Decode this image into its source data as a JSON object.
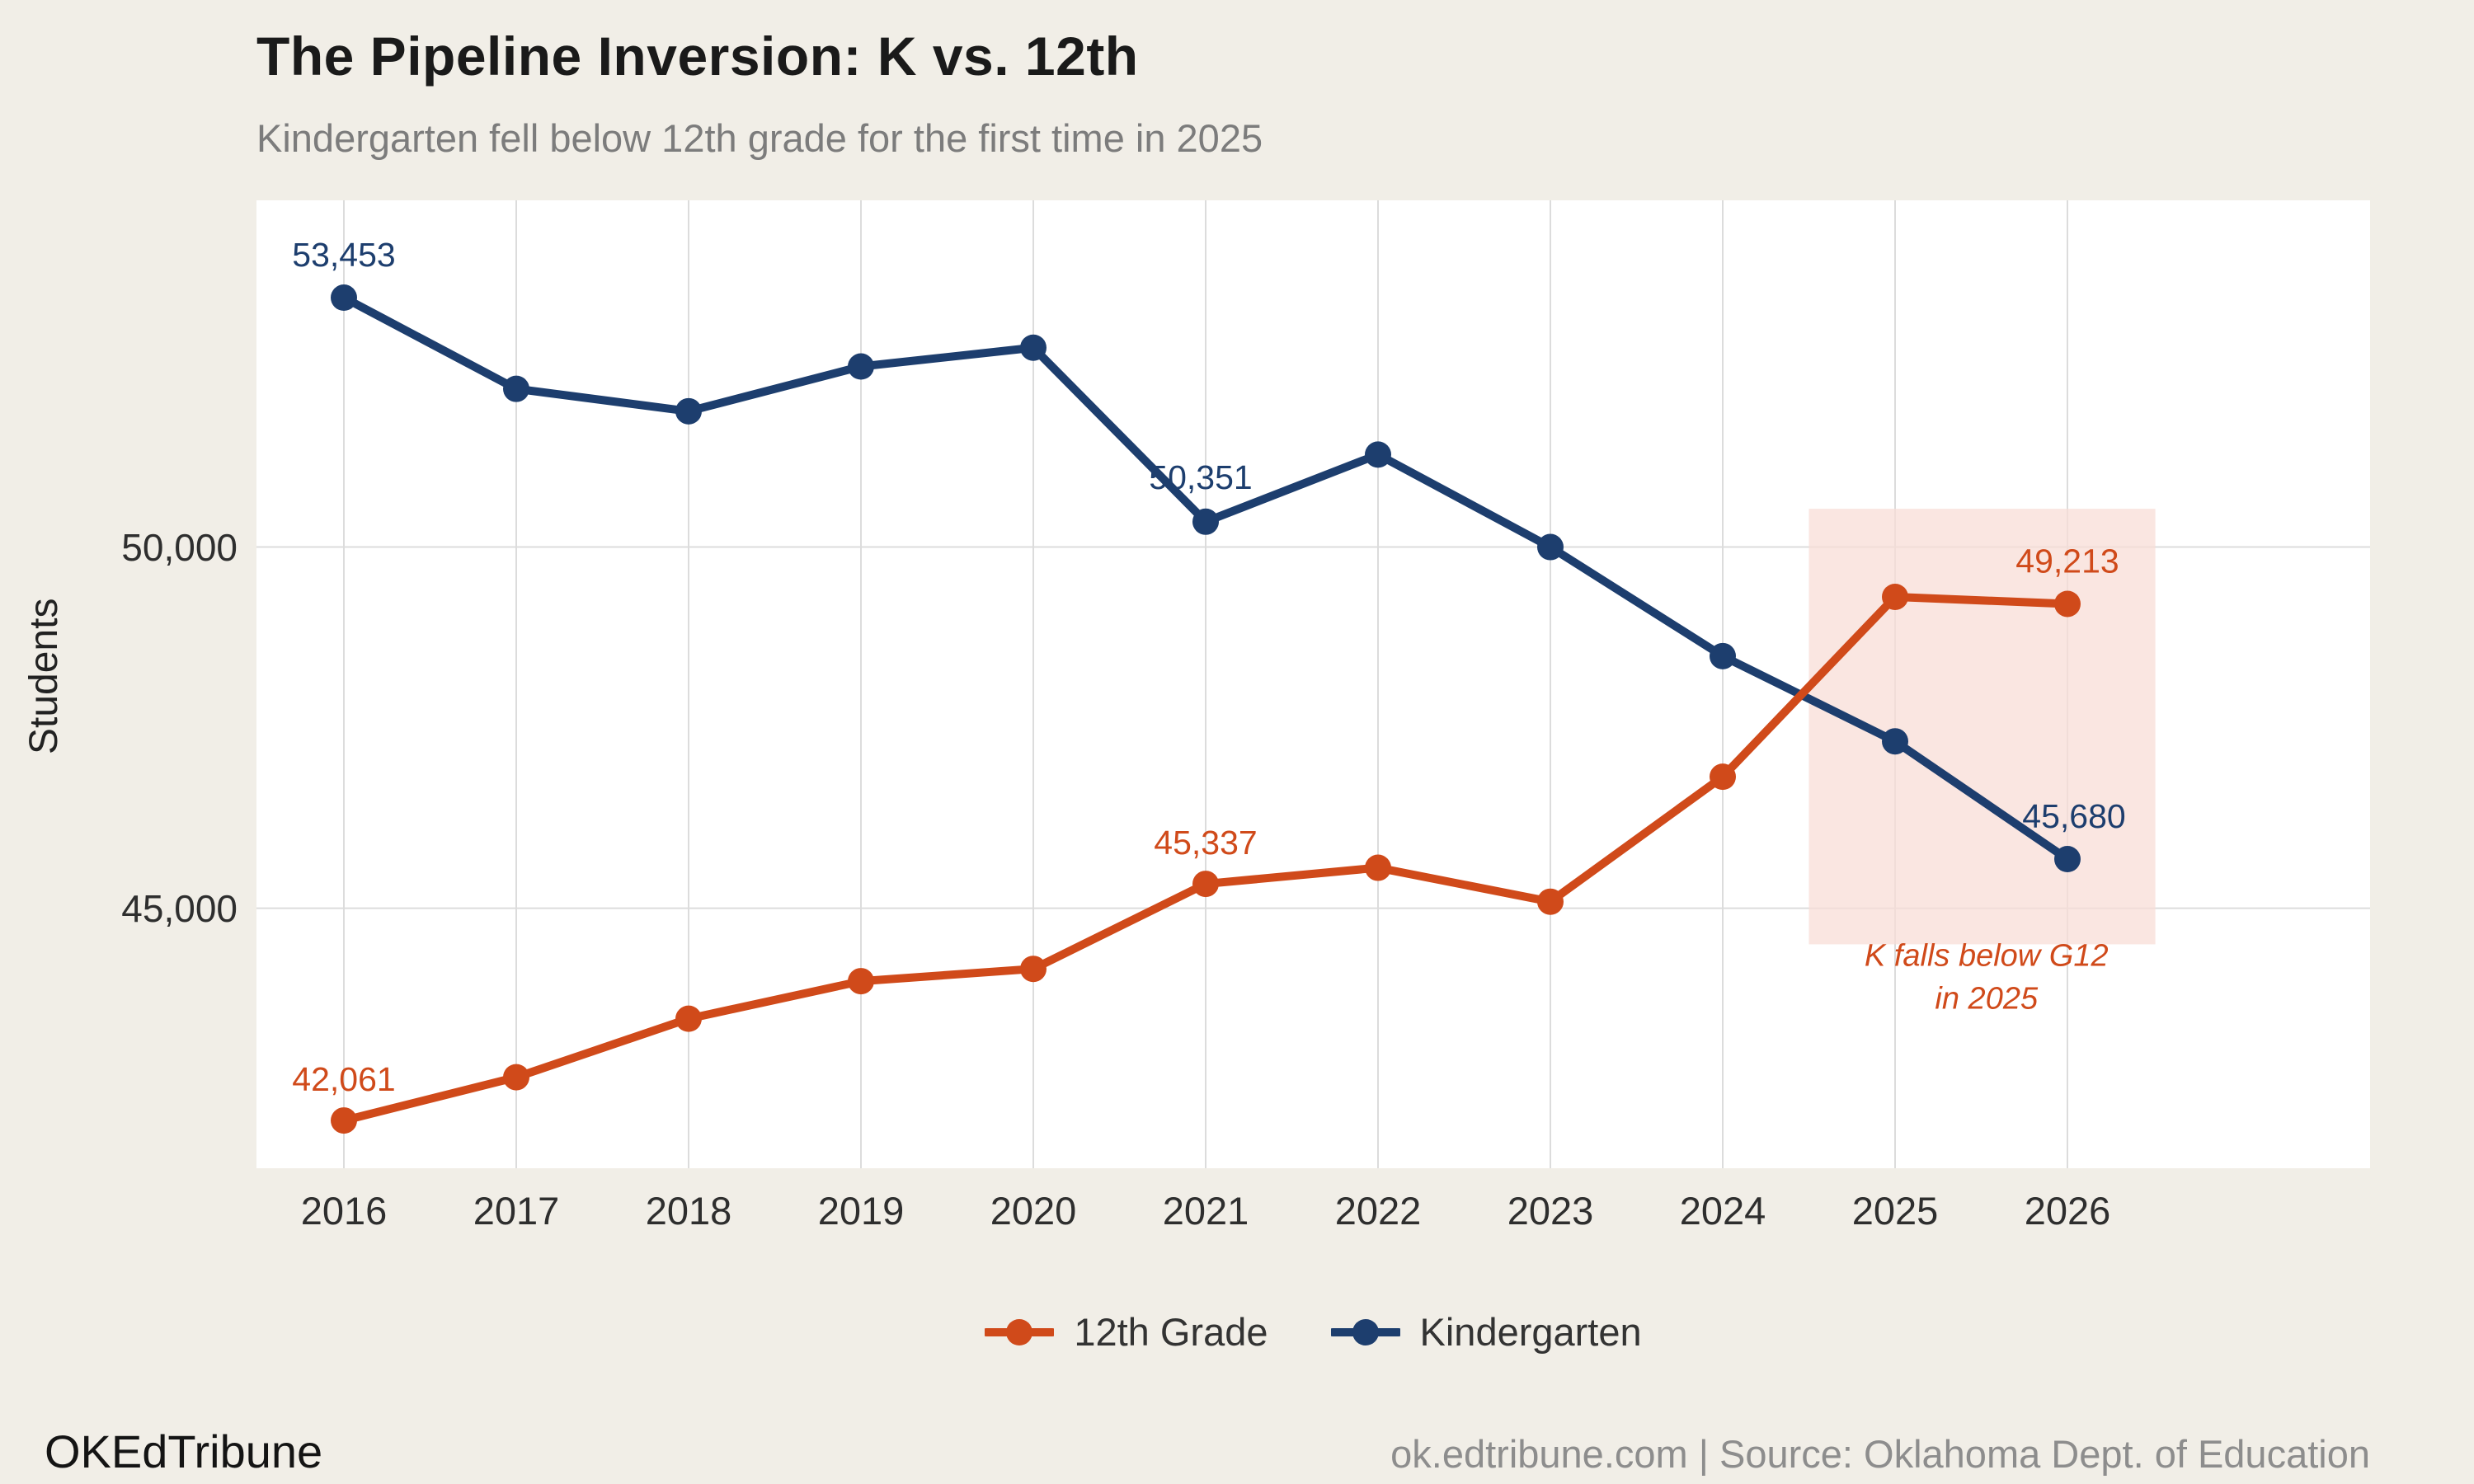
{
  "page": {
    "title": "The Pipeline Inversion: K vs. 12th",
    "subtitle": "Kindergarten fell below 12th grade for the first time in 2025",
    "footer_left": "OKEdTribune",
    "footer_right": "ok.edtribune.com | Source: Oklahoma Dept. of Education"
  },
  "colors": {
    "background": "#f1eee7",
    "plot_background": "#ffffff",
    "grid": "#dcdcdc",
    "grade12": "#d04a1a",
    "kindergarten": "#1d3e6e",
    "highlight_fill": "#f8ded7"
  },
  "chart_data": {
    "type": "line",
    "title": "The Pipeline Inversion: K vs. 12th",
    "subtitle": "Kindergarten fell below 12th grade for the first time in 2025",
    "x": [
      2016,
      2017,
      2018,
      2019,
      2020,
      2021,
      2022,
      2023,
      2024,
      2025,
      2026
    ],
    "xlabel": "",
    "ylabel": "Students",
    "yticks": [
      45000,
      50000
    ],
    "ylim": [
      41400,
      54800
    ],
    "grid": true,
    "legend_position": "bottom",
    "series": [
      {
        "name": "12th Grade",
        "color": "#d04a1a",
        "values": [
          42061,
          42660,
          43470,
          43990,
          44160,
          45337,
          45560,
          45090,
          46820,
          49310,
          49213
        ],
        "point_labels": [
          {
            "x": 2016,
            "text": "42,061",
            "dx": 0,
            "dy": -36
          },
          {
            "x": 2021,
            "text": "45,337",
            "dx": 0,
            "dy": -36
          },
          {
            "x": 2026,
            "text": "49,213",
            "dx": 0,
            "dy": -38
          }
        ]
      },
      {
        "name": "Kindergarten",
        "color": "#1d3e6e",
        "values": [
          53453,
          52190,
          51880,
          52500,
          52760,
          50351,
          51280,
          50000,
          48490,
          47310,
          45680
        ],
        "point_labels": [
          {
            "x": 2016,
            "text": "53,453",
            "dx": 0,
            "dy": -38
          },
          {
            "x": 2021,
            "text": "50,351",
            "dx": -6,
            "dy": -40
          },
          {
            "x": 2026,
            "text": "45,680",
            "dx": 8,
            "dy": -38
          }
        ]
      }
    ],
    "highlight": {
      "x0": 2024.5,
      "x1": 2026.51,
      "y0": 44500,
      "y1": 50530,
      "fill": "#f8ded7",
      "opacity": 0.75
    },
    "annotation": {
      "x": 2025.53,
      "y": 44200,
      "color": "#d04a1a",
      "lines": [
        "K falls below G12",
        "in 2025"
      ]
    }
  }
}
